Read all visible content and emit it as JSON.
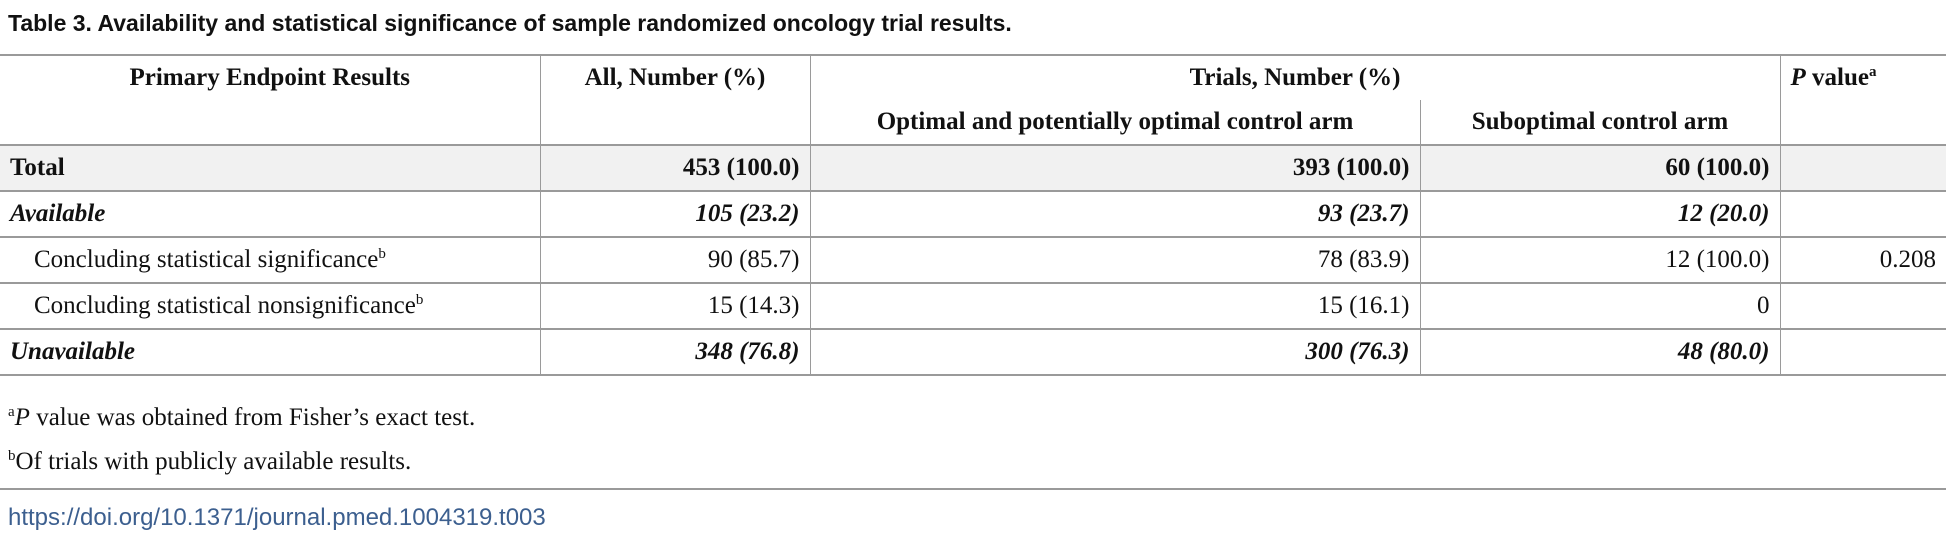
{
  "caption": "Table 3.  Availability and statistical significance of sample randomized oncology trial results.",
  "header": {
    "col1": "Primary Endpoint Results",
    "col2": "All, Number (%)",
    "group": "Trials, Number (%)",
    "col3": "Optimal and potentially optimal control arm",
    "col4": "Suboptimal control arm",
    "pvalue_p": "P",
    "pvalue_rest": " value",
    "pvalue_sup": "a"
  },
  "rows": [
    {
      "label": "Total",
      "all": "453 (100.0)",
      "optimal": "393 (100.0)",
      "suboptimal": "60 (100.0)",
      "p": ""
    },
    {
      "label": "Available",
      "all": "105 (23.2)",
      "optimal": "93 (23.7)",
      "suboptimal": "12 (20.0)",
      "p": ""
    },
    {
      "label": "Concluding statistical significance",
      "sup": "b",
      "all": "90 (85.7)",
      "optimal": "78 (83.9)",
      "suboptimal": "12 (100.0)",
      "p": "0.208"
    },
    {
      "label": "Concluding statistical nonsignificance",
      "sup": "b",
      "all": "15 (14.3)",
      "optimal": "15 (16.1)",
      "suboptimal": "0",
      "p": ""
    },
    {
      "label": "Unavailable",
      "all": "348 (76.8)",
      "optimal": "300 (76.3)",
      "suboptimal": "48 (80.0)",
      "p": ""
    }
  ],
  "footnotes": {
    "a_sup": "a",
    "a_p": "P",
    "a_text": " value was obtained from Fisher’s exact test.",
    "b_sup": "b",
    "b_text": "Of trials with publicly available results."
  },
  "doi": "https://doi.org/10.1371/journal.pmed.1004319.t003"
}
